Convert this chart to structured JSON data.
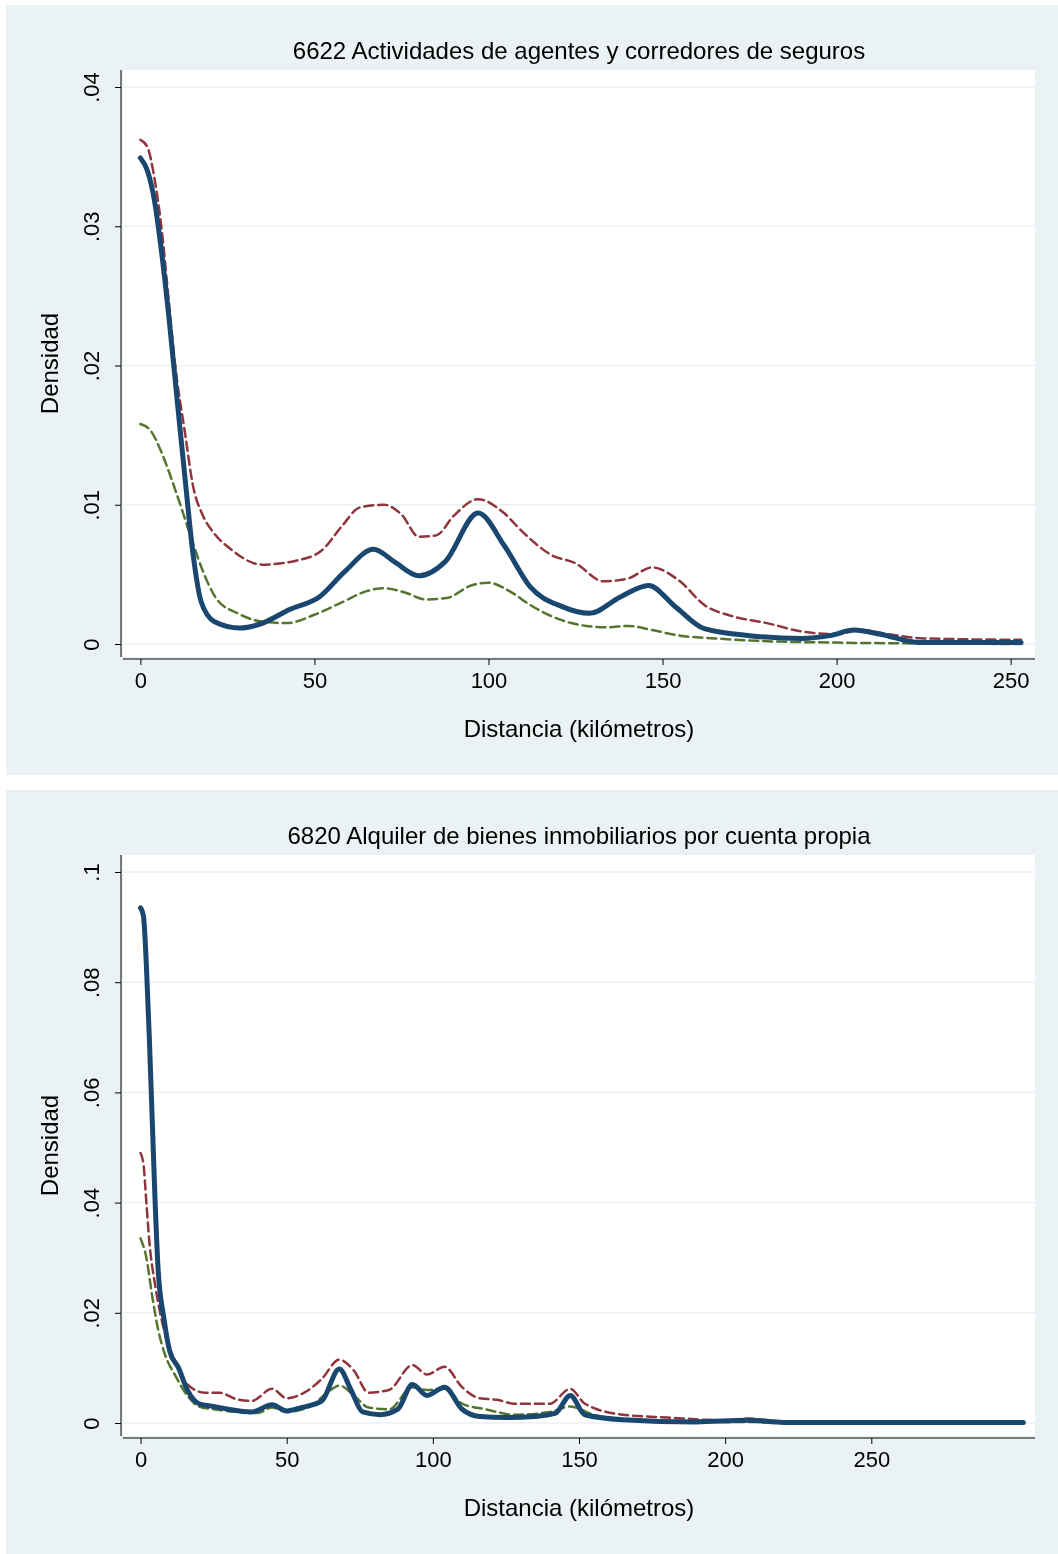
{
  "chart_data": [
    {
      "type": "line",
      "title": "6622 Actividades de agentes y corredores de seguros",
      "xlabel": "Distancia (kilómetros)",
      "ylabel": "Densidad",
      "xlim": [
        -5,
        257
      ],
      "ylim": [
        0,
        0.04
      ],
      "xticks": [
        0,
        50,
        100,
        150,
        200,
        250
      ],
      "yticks": [
        0,
        {
          "value": 0.01,
          "label": ".01"
        },
        {
          "value": 0.02,
          "label": ".02"
        },
        {
          "value": 0.03,
          "label": ".03"
        },
        {
          "value": 0.04,
          "label": ".04"
        }
      ],
      "grid": "y",
      "series": [
        {
          "color": "#90353b",
          "line_style": "dashed",
          "x": [
            0,
            2,
            4,
            6,
            8,
            10,
            12.9,
            15,
            18,
            21,
            26,
            35,
            45,
            52,
            58,
            63,
            70,
            75,
            80,
            85,
            90,
            97,
            104,
            110,
            118,
            125,
            133,
            140,
            147,
            155,
            162,
            170,
            180,
            190,
            200,
            207,
            215,
            225,
            253
          ],
          "values": [
            0.0362,
            0.0357,
            0.0335,
            0.03,
            0.025,
            0.02,
            0.015,
            0.0115,
            0.0092,
            0.008,
            0.0068,
            0.0057,
            0.006,
            0.0067,
            0.0085,
            0.0098,
            0.01,
            0.0093,
            0.0077,
            0.0078,
            0.0092,
            0.0104,
            0.0095,
            0.008,
            0.0064,
            0.0058,
            0.0045,
            0.0047,
            0.0055,
            0.0045,
            0.0028,
            0.002,
            0.0015,
            0.0009,
            0.0007,
            0.001,
            0.0007,
            0.0004,
            0.0003
          ]
        },
        {
          "color": "#55752f",
          "line_style": "dashed",
          "x": [
            0,
            3,
            6,
            9,
            12,
            15,
            18,
            22,
            28,
            35,
            42,
            50,
            58,
            65,
            70,
            76,
            82,
            88,
            95,
            100,
            106,
            112,
            120,
            128,
            134,
            140,
            147,
            155,
            165,
            180,
            200,
            253
          ],
          "values": [
            0.0158,
            0.0153,
            0.0138,
            0.0118,
            0.0096,
            0.0073,
            0.0052,
            0.0032,
            0.0022,
            0.0016,
            0.0015,
            0.0021,
            0.003,
            0.0038,
            0.004,
            0.0037,
            0.0032,
            0.0033,
            0.0042,
            0.0044,
            0.0038,
            0.0028,
            0.0018,
            0.0013,
            0.0012,
            0.0013,
            0.001,
            0.0006,
            0.0004,
            0.0002,
            0.0001,
            0
          ]
        },
        {
          "color": "#1a476f",
          "line_style": "solid",
          "x": [
            0,
            2,
            4,
            6,
            8.3,
            10.6,
            12.9,
            15.2,
            17.5,
            21.3,
            28.5,
            34,
            43,
            51.5,
            58.7,
            67,
            73,
            80,
            87.5,
            97,
            104.7,
            112,
            121,
            129,
            138,
            146,
            153.6,
            162,
            175,
            190,
            198,
            205,
            212.6,
            224,
            253
          ],
          "values": [
            0.0349,
            0.034,
            0.0319,
            0.0283,
            0.0232,
            0.0174,
            0.0117,
            0.0063,
            0.003,
            0.0016,
            0.00115,
            0.0014,
            0.0025,
            0.0034,
            0.0052,
            0.0068,
            0.0059,
            0.0049,
            0.0059,
            0.0094,
            0.007,
            0.0041,
            0.0027,
            0.0022,
            0.0034,
            0.0042,
            0.0027,
            0.0011,
            0.0006,
            0.0004,
            0.0006,
            0.001,
            0.0007,
            0.0001,
            0.0001
          ]
        }
      ]
    },
    {
      "type": "line",
      "title": "6820 Alquiler de bienes inmobiliarios por cuenta propia",
      "xlabel": "Distancia (kilómetros)",
      "ylabel": "Densidad",
      "xlim": [
        -6,
        306
      ],
      "ylim": [
        0,
        0.1
      ],
      "xticks": [
        0,
        50,
        100,
        150,
        200,
        250
      ],
      "yticks": [
        0,
        {
          "value": 0.02,
          "label": ".02"
        },
        {
          "value": 0.04,
          "label": ".04"
        },
        {
          "value": 0.06,
          "label": ".06"
        },
        {
          "value": 0.08,
          "label": ".08"
        },
        {
          "value": 0.1,
          "label": ".1"
        }
      ],
      "grid": "y",
      "series": [
        {
          "color": "#90353b",
          "line_style": "dashed",
          "x": [
            0,
            1,
            2,
            3,
            5,
            8,
            12,
            16,
            22,
            27,
            33,
            38,
            45,
            50,
            56,
            62,
            68,
            73,
            78,
            85,
            93,
            98,
            104,
            110,
            116,
            122,
            128,
            140,
            147,
            152,
            165,
            180,
            200,
            208,
            220,
            302
          ],
          "values": [
            0.049,
            0.047,
            0.04,
            0.033,
            0.025,
            0.017,
            0.011,
            0.007,
            0.0055,
            0.0055,
            0.0043,
            0.004,
            0.0062,
            0.0045,
            0.0055,
            0.008,
            0.0115,
            0.0095,
            0.0055,
            0.006,
            0.0105,
            0.0088,
            0.0102,
            0.0065,
            0.0045,
            0.0042,
            0.0035,
            0.0035,
            0.0062,
            0.0035,
            0.0015,
            0.001,
            0.0005,
            0.0008,
            0.0003,
            0.0001
          ]
        },
        {
          "color": "#55752f",
          "line_style": "dashed",
          "x": [
            0,
            2,
            4,
            6,
            8,
            12,
            16,
            20,
            25,
            33,
            40,
            45,
            50,
            58,
            65,
            68,
            73,
            78,
            85,
            93,
            98,
            104,
            110,
            118,
            128,
            140,
            147,
            155,
            170,
            200,
            302
          ],
          "values": [
            0.0335,
            0.03,
            0.023,
            0.017,
            0.013,
            0.0085,
            0.005,
            0.003,
            0.0025,
            0.002,
            0.0018,
            0.0028,
            0.002,
            0.003,
            0.006,
            0.0068,
            0.005,
            0.0028,
            0.0025,
            0.0065,
            0.006,
            0.0062,
            0.0035,
            0.0025,
            0.0015,
            0.002,
            0.003,
            0.0015,
            0.0005,
            0.0002,
            0
          ]
        },
        {
          "color": "#1a476f",
          "line_style": "solid",
          "x": [
            0,
            1,
            2,
            3,
            4,
            5,
            6,
            8,
            10,
            13,
            16,
            20,
            25,
            30,
            38,
            45,
            50,
            55,
            62,
            68,
            72,
            76,
            82,
            88,
            93,
            98,
            104,
            110,
            116,
            125,
            135,
            142,
            147,
            152,
            165,
            190,
            208,
            220,
            302
          ],
          "values": [
            0.0935,
            0.092,
            0.083,
            0.07,
            0.055,
            0.04,
            0.028,
            0.019,
            0.013,
            0.01,
            0.006,
            0.0035,
            0.003,
            0.0025,
            0.002,
            0.0033,
            0.0022,
            0.0028,
            0.004,
            0.0098,
            0.006,
            0.002,
            0.0015,
            0.0025,
            0.007,
            0.005,
            0.0065,
            0.0025,
            0.0012,
            0.001,
            0.0012,
            0.0018,
            0.005,
            0.0015,
            0.0006,
            0.0002,
            0.0005,
            0.0001,
            0.0001
          ]
        }
      ]
    }
  ]
}
